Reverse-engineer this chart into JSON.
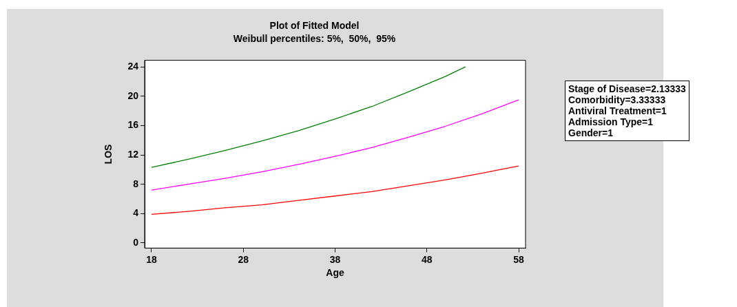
{
  "chart_data": {
    "type": "line",
    "title": "Plot of Fitted Model",
    "subtitle": "Weibull percentiles: 5%,  50%,  95%",
    "xlabel": "Age",
    "ylabel": "LOS",
    "xlim": [
      17.25,
      58.75
    ],
    "xticks": [
      18,
      28,
      38,
      48,
      58
    ],
    "ylim": [
      -0.7,
      24.9
    ],
    "yticks": [
      0,
      4,
      8,
      12,
      16,
      20,
      24
    ],
    "grid": false,
    "legend": false,
    "marker": "none",
    "line_style": "solid",
    "series": [
      {
        "color": "#ff0000",
        "x": [
          18,
          22,
          26,
          30,
          34,
          38,
          42,
          46,
          50,
          54,
          58
        ],
        "values": [
          3.9,
          4.3,
          4.8,
          5.2,
          5.8,
          6.4,
          7.0,
          7.8,
          8.6,
          9.5,
          10.5
        ]
      },
      {
        "color": "#ff00ff",
        "x": [
          18,
          22,
          26,
          30,
          34,
          38,
          42,
          46,
          50,
          54,
          58
        ],
        "values": [
          7.2,
          8.0,
          8.8,
          9.7,
          10.7,
          11.8,
          13.0,
          14.4,
          15.9,
          17.6,
          19.5
        ]
      },
      {
        "color": "#008000",
        "x": [
          18,
          22,
          26,
          30,
          34,
          38,
          42,
          46,
          50,
          52.2
        ],
        "values": [
          10.3,
          11.4,
          12.6,
          13.9,
          15.3,
          16.9,
          18.6,
          20.6,
          22.7,
          24.0
        ]
      }
    ],
    "annotations": [
      "Stage of Disease=2.13333",
      "Comorbidity=3.33333",
      "Antiviral Treatment=1",
      "Admission Type=1",
      "Gender=1"
    ]
  }
}
